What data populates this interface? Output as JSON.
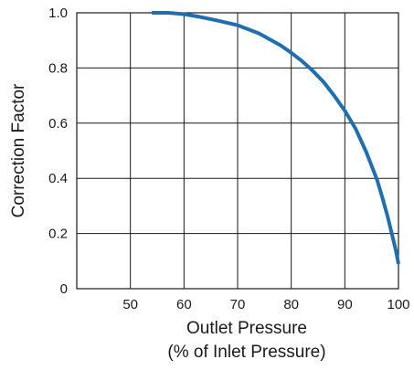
{
  "chart_data": {
    "type": "line",
    "title": "",
    "xlabel_lines": [
      "Outlet Pressure",
      "(% of Inlet Pressure)"
    ],
    "ylabel": "Correction Factor",
    "xlim": [
      40,
      100
    ],
    "ylim": [
      0,
      1.0
    ],
    "x_ticks": [
      "50",
      "60",
      "70",
      "80",
      "90",
      "100"
    ],
    "y_ticks": [
      "0",
      "0.2",
      "0.4",
      "0.6",
      "0.8",
      "1.0"
    ],
    "grid": true,
    "series": [
      {
        "color": "#1f6fb0",
        "x": [
          54,
          57,
          60,
          63,
          66,
          70,
          74,
          78,
          80,
          82,
          84,
          86,
          88,
          90,
          92,
          94,
          96,
          97,
          98,
          99,
          99.5,
          100
        ],
        "y": [
          1.0,
          1.0,
          0.995,
          0.985,
          0.973,
          0.955,
          0.925,
          0.882,
          0.855,
          0.825,
          0.79,
          0.75,
          0.7,
          0.645,
          0.58,
          0.495,
          0.395,
          0.33,
          0.26,
          0.18,
          0.14,
          0.09
        ]
      }
    ]
  }
}
